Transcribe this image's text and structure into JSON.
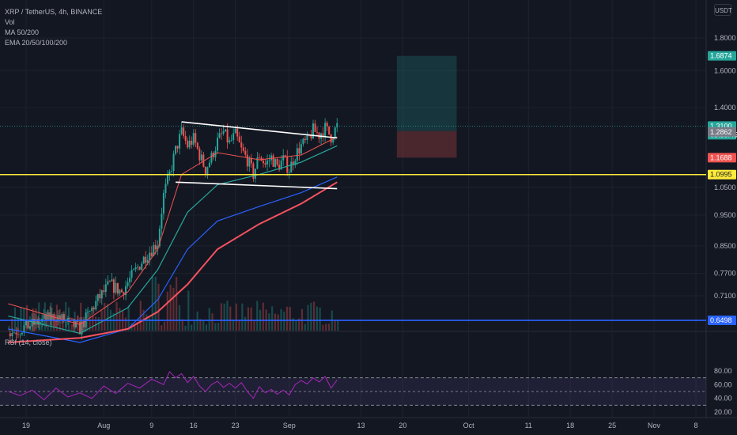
{
  "legend": {
    "symbol": "XRP / TetherUS, 4h, BINANCE",
    "vol": "Vol",
    "ma": "MA 50/200",
    "ema": "EMA 20/50/100/200"
  },
  "rsi_legend": "RSI (14, close)",
  "currency": "USDT",
  "colors": {
    "background": "#131722",
    "grid": "#1e222d",
    "candle_up": "#26a69a",
    "candle_down": "#ef5350",
    "support_line": "#ffeb3b",
    "ema20": "#ef5350",
    "ema50": "#26a69a",
    "ema100": "#2962ff",
    "ema200": "#f7525f",
    "trendline": "#ffffff",
    "rsi_line": "#9c27b0",
    "rsi_band": "#7e57c2"
  },
  "chart_data": [
    {
      "type": "candlestick",
      "title": "XRP / TetherUS, 4h, BINANCE",
      "y_scale": "log",
      "ylim": [
        0.64,
        1.86
      ],
      "y_ticks": [
        "1.8000",
        "1.6000",
        "1.4000",
        "1.3100",
        "1.2862",
        "1.1688",
        "1.0995",
        "1.0500",
        "0.9500",
        "0.8500",
        "0.7700",
        "0.7100",
        "0.6498"
      ],
      "y_tick_values": [
        1.8,
        1.6,
        1.4,
        1.05,
        0.95,
        0.85,
        0.77,
        0.71
      ],
      "x_ticks": [
        "19",
        "Aug",
        "9",
        "16",
        "23",
        "Sep",
        "13",
        "20",
        "Oct",
        "11",
        "18",
        "25",
        "Nov",
        "8"
      ],
      "price_labels": [
        {
          "label": "1.6874",
          "value": 1.6874,
          "role": "take-profit",
          "color": "#26a69a"
        },
        {
          "label": "1.3100",
          "value": 1.31,
          "role": "last-price",
          "color": "#26a69a"
        },
        {
          "label": "03:58:45",
          "role": "countdown",
          "color": "#26a69a"
        },
        {
          "label": "1.2862",
          "value": 1.2862,
          "role": "entry",
          "color": "#787b86"
        },
        {
          "label": "1.1688",
          "value": 1.1688,
          "role": "stop-loss",
          "color": "#ef5350"
        },
        {
          "label": "1.0995",
          "value": 1.0995,
          "role": "support",
          "color": "#ffeb3b"
        },
        {
          "label": "0.6498",
          "value": 0.6498,
          "role": "low-line",
          "color": "#2962ff"
        }
      ],
      "horizontal_lines": [
        {
          "value": 1.0995,
          "color": "#ffeb3b"
        },
        {
          "value": 0.6498,
          "color": "#2962ff"
        },
        {
          "value": 1.31,
          "color": "#26a69a",
          "dotted": true
        }
      ],
      "trendlines": [
        {
          "from": {
            "x": "Aug 14",
            "y": 1.33
          },
          "to": {
            "x": "Sep 9",
            "y": 1.255
          }
        },
        {
          "from": {
            "x": "Aug 13",
            "y": 1.07
          },
          "to": {
            "x": "Sep 9",
            "y": 1.045
          }
        }
      ],
      "position": {
        "entry": 1.2862,
        "take_profit": 1.6874,
        "stop_loss": 1.1688,
        "from": "Sep 19",
        "to": "Sep 29"
      },
      "price_path": [
        [
          "Jul 16",
          0.62
        ],
        [
          "Jul 20",
          0.64
        ],
        [
          "Jul 24",
          0.66
        ],
        [
          "Jul 28",
          0.63
        ],
        [
          "Jul 31",
          0.7
        ],
        [
          "Aug 2",
          0.74
        ],
        [
          "Aug 4",
          0.72
        ],
        [
          "Aug 6",
          0.77
        ],
        [
          "Aug 8",
          0.82
        ],
        [
          "Aug 10",
          0.86
        ],
        [
          "Aug 11",
          1.02
        ],
        [
          "Aug 12",
          1.1
        ],
        [
          "Aug 13",
          1.2
        ],
        [
          "Aug 14",
          1.28
        ],
        [
          "Aug 15",
          1.22
        ],
        [
          "Aug 16",
          1.25
        ],
        [
          "Aug 17",
          1.18
        ],
        [
          "Aug 18",
          1.12
        ],
        [
          "Aug 19",
          1.17
        ],
        [
          "Aug 20",
          1.24
        ],
        [
          "Aug 21",
          1.28
        ],
        [
          "Aug 22",
          1.23
        ],
        [
          "Aug 23",
          1.27
        ],
        [
          "Aug 24",
          1.2
        ],
        [
          "Aug 25",
          1.16
        ],
        [
          "Aug 26",
          1.1
        ],
        [
          "Aug 27",
          1.18
        ],
        [
          "Aug 28",
          1.14
        ],
        [
          "Aug 29",
          1.17
        ],
        [
          "Aug 30",
          1.13
        ],
        [
          "Aug 31",
          1.16
        ],
        [
          "Sep 1",
          1.12
        ],
        [
          "Sep 2",
          1.18
        ],
        [
          "Sep 3",
          1.22
        ],
        [
          "Sep 4",
          1.24
        ],
        [
          "Sep 5",
          1.29
        ],
        [
          "Sep 6",
          1.27
        ],
        [
          "Sep 7",
          1.3
        ],
        [
          "Sep 8",
          1.26
        ],
        [
          "Sep 9",
          1.31
        ]
      ],
      "ema_points": {
        "ema20": [
          [
            "Jul 16",
            0.69
          ],
          [
            "Jul 28",
            0.64
          ],
          [
            "Aug 5",
            0.72
          ],
          [
            "Aug 10",
            0.84
          ],
          [
            "Aug 14",
            1.1
          ],
          [
            "Aug 20",
            1.19
          ],
          [
            "Aug 27",
            1.16
          ],
          [
            "Sep 3",
            1.18
          ],
          [
            "Sep 9",
            1.26
          ]
        ],
        "ema50": [
          [
            "Jul 16",
            0.66
          ],
          [
            "Jul 28",
            0.62
          ],
          [
            "Aug 5",
            0.68
          ],
          [
            "Aug 10",
            0.78
          ],
          [
            "Aug 15",
            0.96
          ],
          [
            "Aug 20",
            1.06
          ],
          [
            "Aug 27",
            1.1
          ],
          [
            "Sep 3",
            1.15
          ],
          [
            "Sep 9",
            1.22
          ]
        ],
        "ema100": [
          [
            "Jul 16",
            0.63
          ],
          [
            "Jul 28",
            0.6
          ],
          [
            "Aug 5",
            0.63
          ],
          [
            "Aug 10",
            0.7
          ],
          [
            "Aug 15",
            0.84
          ],
          [
            "Aug 20",
            0.93
          ],
          [
            "Aug 27",
            0.98
          ],
          [
            "Sep 3",
            1.03
          ],
          [
            "Sep 9",
            1.09
          ]
        ],
        "ema200": [
          [
            "Jul 16",
            0.6
          ],
          [
            "Jul 28",
            0.61
          ],
          [
            "Aug 5",
            0.63
          ],
          [
            "Aug 10",
            0.67
          ],
          [
            "Aug 15",
            0.74
          ],
          [
            "Aug 20",
            0.84
          ],
          [
            "Aug 27",
            0.92
          ],
          [
            "Sep 3",
            0.99
          ],
          [
            "Sep 9",
            1.07
          ]
        ]
      }
    },
    {
      "type": "line",
      "title": "RSI (14, close)",
      "ylim": [
        20,
        85
      ],
      "y_ticks": [
        "80.00",
        "60.00",
        "40.00",
        "20.00"
      ],
      "y_tick_values": [
        80,
        60,
        40,
        20
      ],
      "bands": [
        70,
        50,
        30
      ],
      "values": [
        [
          "Jul 16",
          50
        ],
        [
          "Jul 18",
          44
        ],
        [
          "Jul 20",
          52
        ],
        [
          "Jul 22",
          38
        ],
        [
          "Jul 24",
          55
        ],
        [
          "Jul 26",
          42
        ],
        [
          "Jul 28",
          48
        ],
        [
          "Jul 30",
          40
        ],
        [
          "Aug 1",
          58
        ],
        [
          "Aug 3",
          47
        ],
        [
          "Aug 5",
          62
        ],
        [
          "Aug 7",
          55
        ],
        [
          "Aug 9",
          68
        ],
        [
          "Aug 11",
          60
        ],
        [
          "Aug 12",
          79
        ],
        [
          "Aug 13",
          70
        ],
        [
          "Aug 14",
          76
        ],
        [
          "Aug 15",
          63
        ],
        [
          "Aug 16",
          72
        ],
        [
          "Aug 17",
          58
        ],
        [
          "Aug 18",
          50
        ],
        [
          "Aug 19",
          60
        ],
        [
          "Aug 20",
          65
        ],
        [
          "Aug 21",
          56
        ],
        [
          "Aug 22",
          62
        ],
        [
          "Aug 23",
          55
        ],
        [
          "Aug 24",
          63
        ],
        [
          "Aug 25",
          50
        ],
        [
          "Aug 26",
          40
        ],
        [
          "Aug 27",
          57
        ],
        [
          "Aug 28",
          48
        ],
        [
          "Aug 29",
          53
        ],
        [
          "Aug 30",
          46
        ],
        [
          "Aug 31",
          52
        ],
        [
          "Sep 1",
          45
        ],
        [
          "Sep 2",
          60
        ],
        [
          "Sep 3",
          66
        ],
        [
          "Sep 4",
          61
        ],
        [
          "Sep 5",
          70
        ],
        [
          "Sep 6",
          64
        ],
        [
          "Sep 7",
          72
        ],
        [
          "Sep 8",
          55
        ],
        [
          "Sep 9",
          67
        ]
      ]
    }
  ]
}
